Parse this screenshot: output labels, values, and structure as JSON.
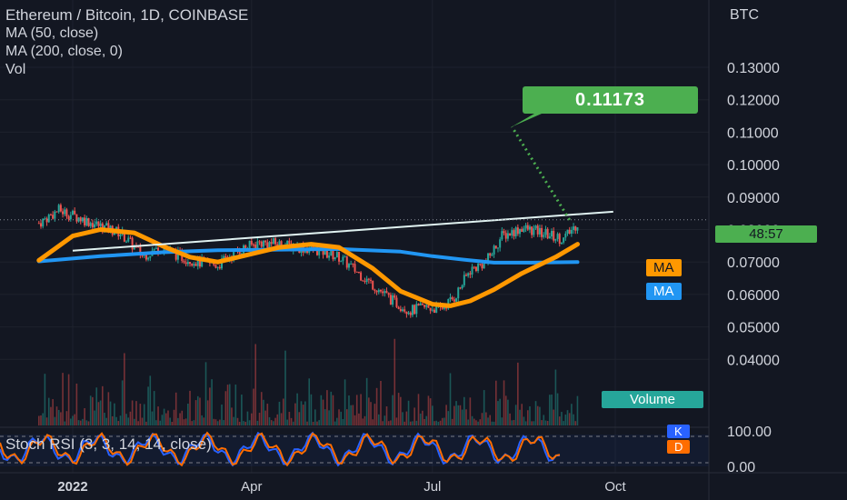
{
  "legend": {
    "title": "Ethereum / Bitcoin, 1D, COINBASE",
    "ma50": "MA (50, close)",
    "ma200": "MA (200, close, 0)",
    "vol": "Vol"
  },
  "labels": {
    "ma_tag_50": "MA",
    "ma_tag_200": "MA",
    "volume_tag": "Volume",
    "k_tag": "K",
    "d_tag": "D",
    "timer": "48:57",
    "target_callout": "0.11173",
    "stoch_label": "Stoch RSI (3, 3, 14, 14, close)"
  },
  "colors": {
    "background": "#131722",
    "up": "#26a69a",
    "down": "#ef5350",
    "ma50": "#ff9800",
    "ma200": "#2196f3",
    "trendline": "#e0f2f1",
    "target": "#4caf50",
    "k": "#2962ff",
    "d": "#ff6d00"
  },
  "chart_data": {
    "type": "line",
    "axis_unit": "BTC",
    "y_ticks": [
      0.13,
      0.12,
      0.11,
      0.1,
      0.09,
      0.08,
      0.07,
      0.06,
      0.05,
      0.04
    ],
    "y_tick_labels": [
      "0.13000",
      "0.12000",
      "0.11000",
      "0.10000",
      "0.09000",
      "0.08000",
      "0.07000",
      "0.06000",
      "0.05000",
      "0.04000"
    ],
    "x_tick_labels": [
      "2022",
      "Apr",
      "Jul",
      "Oct"
    ],
    "x_tick_dates": [
      "2022-01-01",
      "2022-04-01",
      "2022-07-01",
      "2022-10-01"
    ],
    "price_series": {
      "name": "ETH/BTC",
      "dates": [
        "2021-12-15",
        "2021-12-25",
        "2022-01-05",
        "2022-01-15",
        "2022-01-25",
        "2022-02-05",
        "2022-02-15",
        "2022-02-25",
        "2022-03-05",
        "2022-03-15",
        "2022-03-25",
        "2022-04-05",
        "2022-04-15",
        "2022-04-25",
        "2022-05-05",
        "2022-05-15",
        "2022-05-25",
        "2022-06-05",
        "2022-06-12",
        "2022-06-20",
        "2022-06-28",
        "2022-07-05",
        "2022-07-12",
        "2022-07-20",
        "2022-07-28",
        "2022-08-05",
        "2022-08-15",
        "2022-08-25",
        "2022-09-05",
        "2022-09-12"
      ],
      "values": [
        0.082,
        0.086,
        0.0835,
        0.081,
        0.079,
        0.072,
        0.0745,
        0.0715,
        0.07,
        0.069,
        0.0735,
        0.076,
        0.0755,
        0.0745,
        0.0735,
        0.0715,
        0.0665,
        0.061,
        0.0575,
        0.055,
        0.056,
        0.0555,
        0.059,
        0.0675,
        0.07,
        0.078,
        0.0805,
        0.079,
        0.077,
        0.082
      ]
    },
    "ma50": {
      "name": "MA (50, close)",
      "dates": [
        "2021-12-15",
        "2022-01-01",
        "2022-01-15",
        "2022-02-01",
        "2022-02-15",
        "2022-03-01",
        "2022-03-15",
        "2022-04-01",
        "2022-04-15",
        "2022-05-01",
        "2022-05-15",
        "2022-06-01",
        "2022-06-15",
        "2022-07-01",
        "2022-07-10",
        "2022-07-20",
        "2022-08-01",
        "2022-08-15",
        "2022-09-01",
        "2022-09-12"
      ],
      "values": [
        0.0705,
        0.078,
        0.08,
        0.079,
        0.075,
        0.0715,
        0.07,
        0.0725,
        0.0745,
        0.0755,
        0.0745,
        0.068,
        0.061,
        0.057,
        0.0565,
        0.058,
        0.0615,
        0.0665,
        0.0715,
        0.0755
      ]
    },
    "ma200": {
      "name": "MA (200, close, 0)",
      "dates": [
        "2021-12-15",
        "2022-01-15",
        "2022-02-15",
        "2022-03-15",
        "2022-04-15",
        "2022-05-15",
        "2022-06-15",
        "2022-07-01",
        "2022-07-20",
        "2022-08-01",
        "2022-08-20",
        "2022-09-12"
      ],
      "values": [
        0.0702,
        0.0718,
        0.073,
        0.0736,
        0.0738,
        0.074,
        0.0732,
        0.0718,
        0.0705,
        0.0698,
        0.0698,
        0.07
      ]
    },
    "trendline": {
      "start": [
        "2022-01-01",
        0.0735
      ],
      "end": [
        "2022-09-30",
        0.0855
      ]
    },
    "dotted_level": 0.083,
    "target": {
      "value": 0.11173,
      "from": [
        "2022-09-08",
        0.083
      ],
      "to": [
        "2022-08-10",
        0.1117
      ]
    },
    "stoch_rsi": {
      "name": "Stoch RSI (3, 3, 14, 14, close)",
      "y_tick_labels": [
        "100.00",
        "0.00"
      ],
      "levels": [
        80,
        20
      ]
    }
  }
}
